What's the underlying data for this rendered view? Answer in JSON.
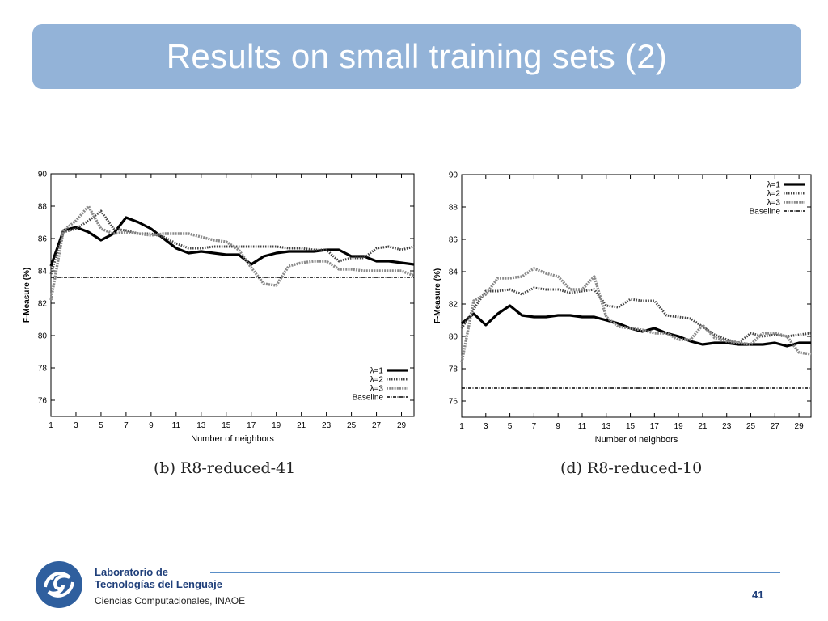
{
  "slide": {
    "title": "Results on small training sets (2)",
    "page_number": "41"
  },
  "footer": {
    "lab_line1": "Laboratorio de",
    "lab_line2": "Tecnologías del Lenguaje",
    "lab_line3": "Ciencias Computacionales, INAOE",
    "accent_color": "#5a8fc8"
  },
  "chart_data": [
    {
      "type": "line",
      "caption": "(b) R8-reduced-41",
      "xlabel": "Number of neighbors",
      "ylabel": "F-Measure (%)",
      "xlim": [
        1,
        30
      ],
      "ylim": [
        75,
        90
      ],
      "xticks": [
        1,
        3,
        5,
        7,
        9,
        11,
        13,
        15,
        17,
        19,
        21,
        23,
        25,
        27,
        29
      ],
      "yticks": [
        76,
        78,
        80,
        82,
        84,
        86,
        88,
        90
      ],
      "legend_position": "bottom-right",
      "x": [
        1,
        2,
        3,
        4,
        5,
        6,
        7,
        8,
        9,
        10,
        11,
        12,
        13,
        14,
        15,
        16,
        17,
        18,
        19,
        20,
        21,
        22,
        23,
        24,
        25,
        26,
        27,
        28,
        29,
        30
      ],
      "series": [
        {
          "name": "λ=1",
          "style": "solid",
          "values": [
            84.3,
            86.5,
            86.7,
            86.4,
            85.9,
            86.3,
            87.3,
            87.0,
            86.6,
            86.0,
            85.4,
            85.1,
            85.2,
            85.1,
            85.0,
            85.0,
            84.4,
            84.9,
            85.1,
            85.2,
            85.2,
            85.2,
            85.3,
            85.3,
            84.9,
            84.9,
            84.6,
            84.6,
            84.5,
            84.4
          ]
        },
        {
          "name": "λ=2",
          "style": "dotted",
          "values": [
            83.8,
            86.4,
            86.6,
            87.1,
            87.7,
            86.6,
            86.5,
            86.3,
            86.3,
            86.1,
            85.7,
            85.4,
            85.4,
            85.5,
            85.5,
            85.5,
            85.5,
            85.5,
            85.5,
            85.4,
            85.4,
            85.3,
            85.3,
            84.6,
            84.8,
            84.8,
            85.4,
            85.5,
            85.3,
            85.5
          ]
        },
        {
          "name": "λ=3",
          "style": "dashed-gray",
          "values": [
            82.2,
            86.5,
            87.1,
            88.0,
            86.6,
            86.3,
            86.4,
            86.3,
            86.2,
            86.3,
            86.3,
            86.3,
            86.1,
            85.9,
            85.8,
            85.3,
            84.2,
            83.2,
            83.1,
            84.3,
            84.5,
            84.6,
            84.6,
            84.1,
            84.1,
            84.0,
            84.0,
            84.0,
            84.0,
            83.7
          ]
        },
        {
          "name": "Baseline",
          "style": "dash-dot",
          "values": [
            83.6,
            83.6,
            83.6,
            83.6,
            83.6,
            83.6,
            83.6,
            83.6,
            83.6,
            83.6,
            83.6,
            83.6,
            83.6,
            83.6,
            83.6,
            83.6,
            83.6,
            83.6,
            83.6,
            83.6,
            83.6,
            83.6,
            83.6,
            83.6,
            83.6,
            83.6,
            83.6,
            83.6,
            83.6,
            83.6
          ]
        }
      ]
    },
    {
      "type": "line",
      "caption": "(d) R8-reduced-10",
      "xlabel": "Number of neighbors",
      "ylabel": "F-Measure (%)",
      "xlim": [
        1,
        30
      ],
      "ylim": [
        75,
        90
      ],
      "xticks": [
        1,
        3,
        5,
        7,
        9,
        11,
        13,
        15,
        17,
        19,
        21,
        23,
        25,
        27,
        29
      ],
      "yticks": [
        76,
        78,
        80,
        82,
        84,
        86,
        88,
        90
      ],
      "legend_position": "top-right",
      "x": [
        1,
        2,
        3,
        4,
        5,
        6,
        7,
        8,
        9,
        10,
        11,
        12,
        13,
        14,
        15,
        16,
        17,
        18,
        19,
        20,
        21,
        22,
        23,
        24,
        25,
        26,
        27,
        28,
        29,
        30
      ],
      "series": [
        {
          "name": "λ=1",
          "style": "solid",
          "values": [
            80.8,
            81.4,
            80.7,
            81.4,
            81.9,
            81.3,
            81.2,
            81.2,
            81.3,
            81.3,
            81.2,
            81.2,
            81.0,
            80.8,
            80.5,
            80.3,
            80.5,
            80.2,
            80.0,
            79.7,
            79.5,
            79.6,
            79.6,
            79.5,
            79.5,
            79.5,
            79.6,
            79.4,
            79.6,
            79.6
          ]
        },
        {
          "name": "λ=2",
          "style": "dotted",
          "values": [
            80.5,
            81.7,
            82.8,
            82.8,
            82.9,
            82.6,
            83.0,
            82.9,
            82.9,
            82.7,
            82.8,
            82.9,
            81.9,
            81.8,
            82.3,
            82.2,
            82.2,
            81.3,
            81.2,
            81.1,
            80.6,
            80.1,
            79.8,
            79.6,
            80.2,
            80.0,
            80.1,
            80.0,
            80.1,
            80.2
          ]
        },
        {
          "name": "λ=3",
          "style": "dashed-gray",
          "values": [
            78.4,
            82.2,
            82.6,
            83.6,
            83.6,
            83.7,
            84.2,
            83.9,
            83.7,
            82.9,
            82.9,
            83.7,
            81.2,
            80.6,
            80.5,
            80.4,
            80.2,
            80.2,
            79.8,
            79.8,
            80.7,
            79.9,
            79.7,
            79.6,
            79.5,
            80.2,
            80.2,
            80.0,
            79.0,
            78.9
          ]
        },
        {
          "name": "Baseline",
          "style": "dash-dot",
          "values": [
            76.8,
            76.8,
            76.8,
            76.8,
            76.8,
            76.8,
            76.8,
            76.8,
            76.8,
            76.8,
            76.8,
            76.8,
            76.8,
            76.8,
            76.8,
            76.8,
            76.8,
            76.8,
            76.8,
            76.8,
            76.8,
            76.8,
            76.8,
            76.8,
            76.8,
            76.8,
            76.8,
            76.8,
            76.8,
            76.8
          ]
        }
      ]
    }
  ]
}
